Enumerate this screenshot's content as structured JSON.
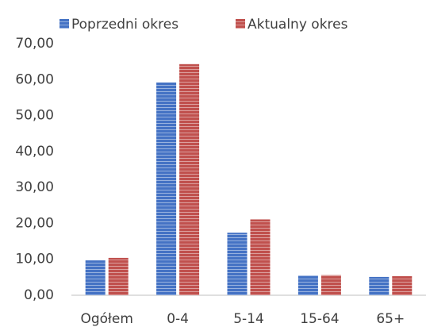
{
  "chart_data": {
    "type": "bar",
    "categories": [
      "Ogółem",
      "0-4",
      "5-14",
      "15-64",
      "65+"
    ],
    "series": [
      {
        "name": "Poprzedni okres",
        "color": "#4472c4",
        "values": [
          9.7,
          59.2,
          17.4,
          5.5,
          5.1
        ]
      },
      {
        "name": "Aktualny okres",
        "color": "#c0504d",
        "values": [
          10.4,
          64.3,
          21.1,
          5.6,
          5.3
        ]
      }
    ],
    "ylim": [
      0,
      70
    ],
    "yticks": [
      {
        "value": 0,
        "label": "0,00"
      },
      {
        "value": 10,
        "label": "10,00"
      },
      {
        "value": 20,
        "label": "20,00"
      },
      {
        "value": 30,
        "label": "30,00"
      },
      {
        "value": 40,
        "label": "40,00"
      },
      {
        "value": 50,
        "label": "50,00"
      },
      {
        "value": 60,
        "label": "60,00"
      },
      {
        "value": 70,
        "label": "70,00"
      }
    ],
    "grid": false,
    "legend": "top"
  }
}
